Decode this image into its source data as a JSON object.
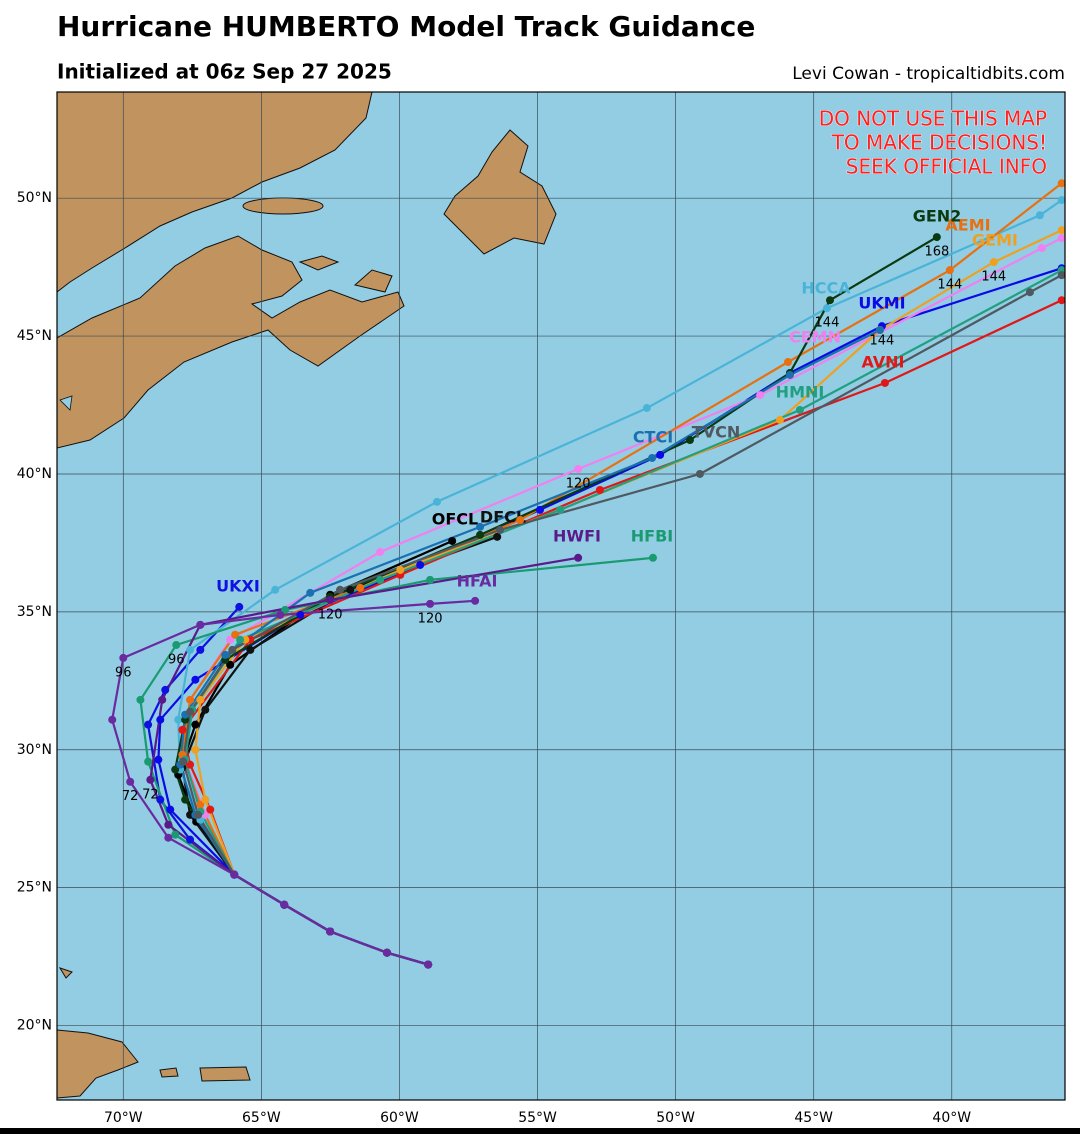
{
  "header": {
    "title": "Hurricane HUMBERTO Model Track Guidance",
    "subtitle": "Initialized at 06z Sep 27 2025",
    "credit": "Levi Cowan - tropicaltidbits.com"
  },
  "warning": [
    "DO NOT USE THIS MAP",
    "TO MAKE DECISIONS!",
    "SEEK OFFICIAL INFO"
  ],
  "map": {
    "lon_range": [
      -72.4,
      -35.9
    ],
    "lat_range": [
      17.3,
      53.85
    ],
    "lon_ticks": [
      {
        "value": -70,
        "label": "70°W"
      },
      {
        "value": -65,
        "label": "65°W"
      },
      {
        "value": -60,
        "label": "60°W"
      },
      {
        "value": -55,
        "label": "55°W"
      },
      {
        "value": -50,
        "label": "50°W"
      },
      {
        "value": -45,
        "label": "45°W"
      },
      {
        "value": -40,
        "label": "40°W"
      }
    ],
    "lat_ticks": [
      {
        "value": 20,
        "label": "20°N"
      },
      {
        "value": 25,
        "label": "25°N"
      },
      {
        "value": 30,
        "label": "30°N"
      },
      {
        "value": 35,
        "label": "35°N"
      },
      {
        "value": 40,
        "label": "40°N"
      },
      {
        "value": 45,
        "label": "45°N"
      },
      {
        "value": 50,
        "label": "50°N"
      }
    ]
  },
  "tracks": [
    {
      "name": "OFCL",
      "color": "#000000",
      "points": [
        {
          "lon": -58.96,
          "lat": 22.21
        },
        {
          "lon": -60.45,
          "lat": 22.64
        },
        {
          "lon": -62.51,
          "lat": 23.41
        },
        {
          "lon": -64.17,
          "lat": 24.38
        },
        {
          "lon": -65.98,
          "lat": 25.47
        },
        {
          "lon": -67.36,
          "lat": 27.39
        },
        {
          "lon": -68.01,
          "lat": 29.09
        },
        {
          "lon": -67.39,
          "lat": 30.91
        },
        {
          "lon": -66.13,
          "lat": 33.08
        },
        {
          "lon": -62.51,
          "lat": 35.62
        },
        {
          "lon": -58.09,
          "lat": 37.57
        }
      ]
    },
    {
      "name": "DFCL",
      "color": "#111111",
      "points": [
        {
          "lon": -58.96,
          "lat": 22.21
        },
        {
          "lon": -60.45,
          "lat": 22.64
        },
        {
          "lon": -62.51,
          "lat": 23.41
        },
        {
          "lon": -64.17,
          "lat": 24.38
        },
        {
          "lon": -65.98,
          "lat": 25.47
        },
        {
          "lon": -67.58,
          "lat": 27.64
        },
        {
          "lon": -67.86,
          "lat": 29.35
        },
        {
          "lon": -67.03,
          "lat": 31.45
        },
        {
          "lon": -65.4,
          "lat": 33.62
        },
        {
          "lon": -61.78,
          "lat": 35.8
        },
        {
          "lon": -56.46,
          "lat": 37.72
        }
      ]
    },
    {
      "name": "UKXI",
      "color": "#1010e0",
      "points": [
        {
          "lon": -58.96,
          "lat": 22.21
        },
        {
          "lon": -60.45,
          "lat": 22.64
        },
        {
          "lon": -62.51,
          "lat": 23.41
        },
        {
          "lon": -64.17,
          "lat": 24.38
        },
        {
          "lon": -65.98,
          "lat": 25.47
        },
        {
          "lon": -67.58,
          "lat": 26.74
        },
        {
          "lon": -68.66,
          "lat": 28.19
        },
        {
          "lon": -69.1,
          "lat": 30.91
        },
        {
          "lon": -68.48,
          "lat": 32.17
        },
        {
          "lon": -67.21,
          "lat": 33.62
        },
        {
          "lon": -65.8,
          "lat": 35.18
        }
      ]
    },
    {
      "name": "UKMI",
      "color": "#0a0ae6",
      "points": [
        {
          "lon": -58.96,
          "lat": 22.21
        },
        {
          "lon": -60.45,
          "lat": 22.64
        },
        {
          "lon": -62.51,
          "lat": 23.41
        },
        {
          "lon": -64.17,
          "lat": 24.38
        },
        {
          "lon": -65.98,
          "lat": 25.47
        },
        {
          "lon": -68.3,
          "lat": 27.83
        },
        {
          "lon": -68.73,
          "lat": 29.64
        },
        {
          "lon": -68.66,
          "lat": 31.09
        },
        {
          "lon": -67.39,
          "lat": 32.54
        },
        {
          "lon": -63.59,
          "lat": 34.89
        },
        {
          "lon": -59.25,
          "lat": 36.7
        },
        {
          "lon": -54.91,
          "lat": 38.7
        },
        {
          "lon": -50.56,
          "lat": 40.69
        },
        {
          "lon": -45.86,
          "lat": 43.66
        },
        {
          "lon": -42.53,
          "lat": 45.36,
          "label": "144"
        },
        {
          "lon": -36.02,
          "lat": 47.46
        }
      ]
    },
    {
      "name": "HCCA",
      "color": "#4ab4d8",
      "points": [
        {
          "lon": -58.96,
          "lat": 22.21
        },
        {
          "lon": -60.45,
          "lat": 22.64
        },
        {
          "lon": -62.51,
          "lat": 23.41
        },
        {
          "lon": -64.17,
          "lat": 24.38
        },
        {
          "lon": -65.98,
          "lat": 25.47
        },
        {
          "lon": -67.21,
          "lat": 27.46
        },
        {
          "lon": -67.94,
          "lat": 29.28
        },
        {
          "lon": -68.01,
          "lat": 31.09
        },
        {
          "lon": -67.58,
          "lat": 33.62
        },
        {
          "lon": -64.5,
          "lat": 35.8
        },
        {
          "lon": -58.64,
          "lat": 38.99
        },
        {
          "lon": -51.04,
          "lat": 42.39
        },
        {
          "lon": -44.52,
          "lat": 46.01,
          "label": "144"
        },
        {
          "lon": -36.81,
          "lat": 49.38
        },
        {
          "lon": -36.02,
          "lat": 49.93
        }
      ]
    },
    {
      "name": "CEMN",
      "color": "#f080f0",
      "points": [
        {
          "lon": -58.96,
          "lat": 22.21
        },
        {
          "lon": -60.45,
          "lat": 22.64
        },
        {
          "lon": -62.51,
          "lat": 23.41
        },
        {
          "lon": -64.17,
          "lat": 24.38
        },
        {
          "lon": -65.98,
          "lat": 25.47
        },
        {
          "lon": -67.03,
          "lat": 27.64
        },
        {
          "lon": -67.76,
          "lat": 29.64
        },
        {
          "lon": -67.58,
          "lat": 31.81
        },
        {
          "lon": -66.13,
          "lat": 33.99
        },
        {
          "lon": -60.7,
          "lat": 37.17
        },
        {
          "lon": -53.53,
          "lat": 40.18,
          "label": "120"
        },
        {
          "lon": -46.94,
          "lat": 42.86
        },
        {
          "lon": -36.74,
          "lat": 48.19
        },
        {
          "lon": -36.02,
          "lat": 48.55
        }
      ]
    },
    {
      "name": "AVNI",
      "color": "#e01818",
      "points": [
        {
          "lon": -58.96,
          "lat": 22.21
        },
        {
          "lon": -60.45,
          "lat": 22.64
        },
        {
          "lon": -62.51,
          "lat": 23.41
        },
        {
          "lon": -64.17,
          "lat": 24.38
        },
        {
          "lon": -65.98,
          "lat": 25.47
        },
        {
          "lon": -66.85,
          "lat": 27.83
        },
        {
          "lon": -67.58,
          "lat": 29.46
        },
        {
          "lon": -67.86,
          "lat": 30.72
        },
        {
          "lon": -65.4,
          "lat": 33.99
        },
        {
          "lon": -59.97,
          "lat": 36.34
        },
        {
          "lon": -52.74,
          "lat": 39.42
        },
        {
          "lon": -42.42,
          "lat": 43.3
        },
        {
          "lon": -36.02,
          "lat": 46.3
        }
      ]
    },
    {
      "name": "AEMI",
      "color": "#e87010",
      "points": [
        {
          "lon": -58.96,
          "lat": 22.21
        },
        {
          "lon": -60.45,
          "lat": 22.64
        },
        {
          "lon": -62.51,
          "lat": 23.41
        },
        {
          "lon": -64.17,
          "lat": 24.38
        },
        {
          "lon": -65.98,
          "lat": 25.47
        },
        {
          "lon": -67.21,
          "lat": 28.01
        },
        {
          "lon": -67.86,
          "lat": 29.82
        },
        {
          "lon": -67.58,
          "lat": 31.81
        },
        {
          "lon": -65.95,
          "lat": 34.17
        },
        {
          "lon": -61.42,
          "lat": 35.87
        },
        {
          "lon": -55.63,
          "lat": 38.33
        },
        {
          "lon": -45.93,
          "lat": 44.06
        },
        {
          "lon": -40.07,
          "lat": 47.39,
          "label": "144"
        },
        {
          "lon": -36.02,
          "lat": 50.54
        }
      ]
    },
    {
      "name": "GEMI",
      "color": "#f0a020",
      "points": [
        {
          "lon": -58.96,
          "lat": 22.21
        },
        {
          "lon": -60.45,
          "lat": 22.64
        },
        {
          "lon": -62.51,
          "lat": 23.41
        },
        {
          "lon": -64.17,
          "lat": 24.38
        },
        {
          "lon": -65.98,
          "lat": 25.47
        },
        {
          "lon": -67.03,
          "lat": 28.19
        },
        {
          "lon": -67.39,
          "lat": 30.0
        },
        {
          "lon": -67.21,
          "lat": 31.81
        },
        {
          "lon": -65.58,
          "lat": 33.99
        },
        {
          "lon": -59.97,
          "lat": 36.52
        },
        {
          "lon": -54.18,
          "lat": 38.7
        },
        {
          "lon": -46.22,
          "lat": 41.96
        },
        {
          "lon": -42.6,
          "lat": 45.22
        },
        {
          "lon": -38.48,
          "lat": 47.68,
          "label": "144"
        },
        {
          "lon": -36.02,
          "lat": 48.84
        }
      ]
    },
    {
      "name": "GEN2",
      "color": "#0a3a10",
      "points": [
        {
          "lon": -58.96,
          "lat": 22.21
        },
        {
          "lon": -60.45,
          "lat": 22.64
        },
        {
          "lon": -62.51,
          "lat": 23.41
        },
        {
          "lon": -64.17,
          "lat": 24.38
        },
        {
          "lon": -65.98,
          "lat": 25.47
        },
        {
          "lon": -67.76,
          "lat": 28.19
        },
        {
          "lon": -68.12,
          "lat": 29.28
        },
        {
          "lon": -67.76,
          "lat": 31.09
        },
        {
          "lon": -66.31,
          "lat": 33.26
        },
        {
          "lon": -62.51,
          "lat": 35.54
        },
        {
          "lon": -57.08,
          "lat": 37.79
        },
        {
          "lon": -49.48,
          "lat": 41.23
        },
        {
          "lon": -45.86,
          "lat": 43.66
        },
        {
          "lon": -44.41,
          "lat": 46.3
        },
        {
          "lon": -40.54,
          "lat": 48.59,
          "label": "168"
        }
      ]
    },
    {
      "name": "HMNI",
      "color": "#20a080",
      "points": [
        {
          "lon": -58.96,
          "lat": 22.21
        },
        {
          "lon": -60.45,
          "lat": 22.64
        },
        {
          "lon": -62.51,
          "lat": 23.41
        },
        {
          "lon": -64.17,
          "lat": 24.38
        },
        {
          "lon": -65.98,
          "lat": 25.47
        },
        {
          "lon": -67.21,
          "lat": 27.75
        },
        {
          "lon": -67.76,
          "lat": 29.64
        },
        {
          "lon": -67.5,
          "lat": 31.45
        },
        {
          "lon": -65.77,
          "lat": 33.99
        },
        {
          "lon": -60.7,
          "lat": 36.16
        },
        {
          "lon": -54.18,
          "lat": 38.7
        },
        {
          "lon": -45.5,
          "lat": 42.32
        },
        {
          "lon": -36.02,
          "lat": 47.39
        }
      ]
    },
    {
      "name": "CTCI",
      "color": "#1a70b0",
      "points": [
        {
          "lon": -58.96,
          "lat": 22.21
        },
        {
          "lon": -60.45,
          "lat": 22.64
        },
        {
          "lon": -62.51,
          "lat": 23.41
        },
        {
          "lon": -64.17,
          "lat": 24.38
        },
        {
          "lon": -65.98,
          "lat": 25.47
        },
        {
          "lon": -67.39,
          "lat": 27.64
        },
        {
          "lon": -67.94,
          "lat": 29.46
        },
        {
          "lon": -67.76,
          "lat": 31.27
        },
        {
          "lon": -66.31,
          "lat": 33.44
        },
        {
          "lon": -63.23,
          "lat": 35.69
        },
        {
          "lon": -57.08,
          "lat": 38.08
        },
        {
          "lon": -50.85,
          "lat": 40.58
        },
        {
          "lon": -45.86,
          "lat": 43.59
        },
        {
          "lon": -42.6,
          "lat": 45.22
        }
      ]
    },
    {
      "name": "TVCN",
      "color": "#505860",
      "points": [
        {
          "lon": -58.96,
          "lat": 22.21
        },
        {
          "lon": -60.45,
          "lat": 22.64
        },
        {
          "lon": -62.51,
          "lat": 23.41
        },
        {
          "lon": -64.17,
          "lat": 24.38
        },
        {
          "lon": -65.98,
          "lat": 25.47
        },
        {
          "lon": -67.29,
          "lat": 27.64
        },
        {
          "lon": -67.83,
          "lat": 29.57
        },
        {
          "lon": -67.58,
          "lat": 31.38
        },
        {
          "lon": -66.05,
          "lat": 33.62
        },
        {
          "lon": -62.15,
          "lat": 35.8
        },
        {
          "lon": -56.36,
          "lat": 37.97
        },
        {
          "lon": -49.12,
          "lat": 40.0
        },
        {
          "lon": -37.17,
          "lat": 46.59
        },
        {
          "lon": -36.02,
          "lat": 47.21
        }
      ]
    },
    {
      "name": "HFBI",
      "color": "#1a9a70",
      "points": [
        {
          "lon": -58.96,
          "lat": 22.21
        },
        {
          "lon": -60.45,
          "lat": 22.64
        },
        {
          "lon": -62.51,
          "lat": 23.41
        },
        {
          "lon": -64.17,
          "lat": 24.38
        },
        {
          "lon": -65.98,
          "lat": 25.47
        },
        {
          "lon": -68.12,
          "lat": 26.92
        },
        {
          "lon": -69.1,
          "lat": 29.57
        },
        {
          "lon": -69.38,
          "lat": 31.81
        },
        {
          "lon": -68.08,
          "lat": 33.8,
          "label": "96"
        },
        {
          "lon": -64.14,
          "lat": 35.07
        },
        {
          "lon": -58.89,
          "lat": 36.16
        },
        {
          "lon": -50.82,
          "lat": 36.96
        }
      ]
    },
    {
      "name": "HWFI",
      "color": "#5a1a8a",
      "points": [
        {
          "lon": -58.96,
          "lat": 22.21
        },
        {
          "lon": -60.45,
          "lat": 22.64
        },
        {
          "lon": -62.51,
          "lat": 23.41
        },
        {
          "lon": -64.17,
          "lat": 24.38
        },
        {
          "lon": -65.98,
          "lat": 25.47
        },
        {
          "lon": -68.37,
          "lat": 27.28
        },
        {
          "lon": -69.02,
          "lat": 28.91,
          "label": "72"
        },
        {
          "lon": -68.59,
          "lat": 31.81
        },
        {
          "lon": -67.21,
          "lat": 34.53
        },
        {
          "lon": -62.51,
          "lat": 35.43,
          "label": "120"
        },
        {
          "lon": -53.53,
          "lat": 36.96
        }
      ]
    },
    {
      "name": "HFAI",
      "color": "#6a2aa0",
      "points": [
        {
          "lon": -58.96,
          "lat": 22.21
        },
        {
          "lon": -60.45,
          "lat": 22.64
        },
        {
          "lon": -62.51,
          "lat": 23.41
        },
        {
          "lon": -64.17,
          "lat": 24.38
        },
        {
          "lon": -65.98,
          "lat": 25.47
        },
        {
          "lon": -68.37,
          "lat": 26.81
        },
        {
          "lon": -69.75,
          "lat": 28.84,
          "label": "72"
        },
        {
          "lon": -70.4,
          "lat": 31.09
        },
        {
          "lon": -70.0,
          "lat": 33.33,
          "label": "96"
        },
        {
          "lon": -67.21,
          "lat": 34.53
        },
        {
          "lon": -64.32,
          "lat": 34.89
        },
        {
          "lon": -58.89,
          "lat": 35.29,
          "label": "120"
        },
        {
          "lon": -57.26,
          "lat": 35.4
        }
      ]
    }
  ]
}
